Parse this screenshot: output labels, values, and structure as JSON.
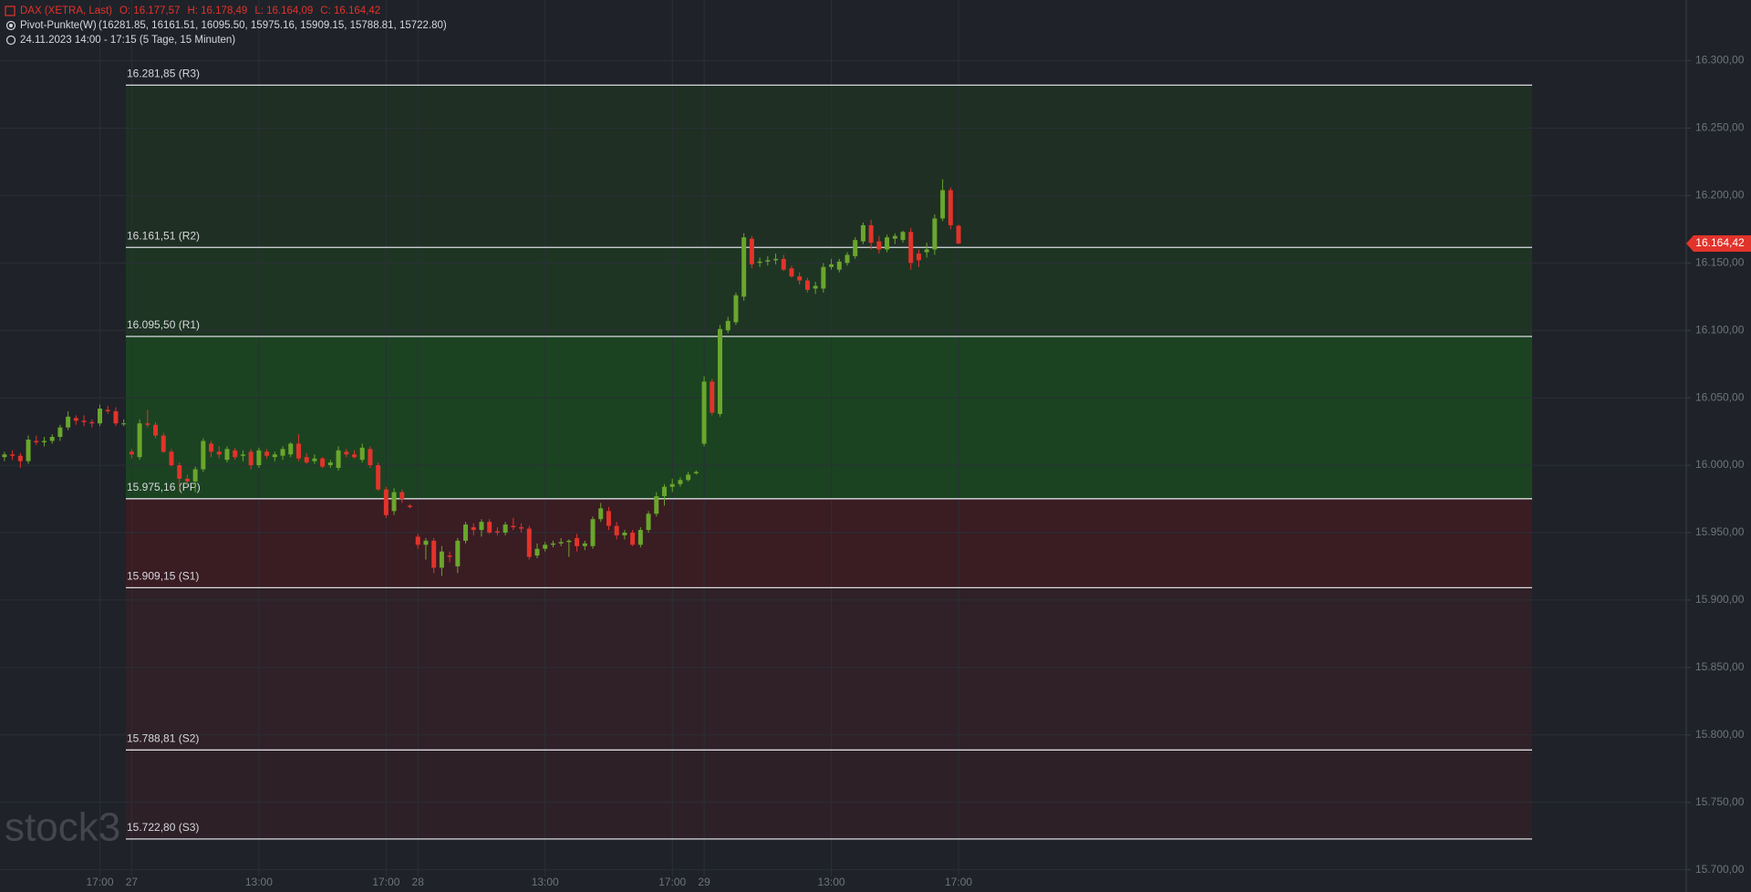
{
  "chart_data": {
    "type": "candlestick",
    "title": "DAX (XETRA, Last)",
    "ohlc_labels": [
      "O: 16.177,57",
      "H: 16.178,49",
      "L: 16.164,09",
      "C: 16.164,42"
    ],
    "indicator": "Pivot-Punkte(W)",
    "indicator_values": "(16281.85,  16161.51,  16095.50,  15975.16,  15909.15,  15788.81,  15722.80)",
    "period": "24.11.2023 14:00 - 17:15   (5 Tage, 15 Minuten)",
    "watermark": "stock3",
    "up_color": "#6aa62c",
    "down_color": "#e2332b",
    "grid": true,
    "ylim": [
      15695,
      16345
    ],
    "yticks": [
      {
        "value": 15700,
        "label": "15.700,00"
      },
      {
        "value": 15750,
        "label": "15.750,00"
      },
      {
        "value": 15800,
        "label": "15.800,00"
      },
      {
        "value": 15850,
        "label": "15.850,00"
      },
      {
        "value": 15900,
        "label": "15.900,00"
      },
      {
        "value": 15950,
        "label": "15.950,00"
      },
      {
        "value": 16000,
        "label": "16.000,00"
      },
      {
        "value": 16050,
        "label": "16.050,00"
      },
      {
        "value": 16100,
        "label": "16.100,00"
      },
      {
        "value": 16150,
        "label": "16.150,00"
      },
      {
        "value": 16200,
        "label": "16.200,00"
      },
      {
        "value": 16250,
        "label": "16.250,00"
      },
      {
        "value": 16300,
        "label": "16.300,00"
      }
    ],
    "pivots": [
      {
        "value": 16281.85,
        "label": "16.281,85 (R3)"
      },
      {
        "value": 16161.51,
        "label": "16.161,51 (R2)"
      },
      {
        "value": 16095.5,
        "label": "16.095,50 (R1)"
      },
      {
        "value": 15975.16,
        "label": "15.975,16 (PP)"
      },
      {
        "value": 15909.15,
        "label": "15.909,15 (S1)"
      },
      {
        "value": 15788.81,
        "label": "15.788,81 (S2)"
      },
      {
        "value": 15722.8,
        "label": "15.722,80 (S3)"
      }
    ],
    "zone_colors": [
      "#1f2f24",
      "#1e3524",
      "#1b4322",
      "#3a1c23",
      "#2f2127",
      "#2d2127"
    ],
    "last_price": {
      "value": 16164.42,
      "label": "16.164,42"
    },
    "categories": [
      null,
      null,
      null,
      null,
      null,
      null,
      null,
      null,
      null,
      null,
      null,
      null,
      "17:00",
      null,
      null,
      null,
      "27",
      null,
      null,
      null,
      null,
      null,
      null,
      null,
      null,
      null,
      null,
      null,
      null,
      null,
      null,
      null,
      "13:00",
      null,
      null,
      null,
      null,
      null,
      null,
      null,
      null,
      null,
      null,
      null,
      null,
      null,
      null,
      null,
      "17:00",
      null,
      null,
      null,
      "28",
      null,
      null,
      null,
      null,
      null,
      null,
      null,
      null,
      null,
      null,
      null,
      null,
      null,
      null,
      null,
      "13:00",
      null,
      null,
      null,
      null,
      null,
      null,
      null,
      null,
      null,
      null,
      null,
      null,
      null,
      null,
      null,
      "17:00",
      null,
      null,
      null,
      "29",
      null,
      null,
      null,
      null,
      null,
      null,
      null,
      null,
      null,
      null,
      null,
      null,
      null,
      null,
      null,
      "13:00",
      null,
      null,
      null,
      null,
      null,
      null,
      null,
      null,
      null,
      null,
      null,
      null,
      null,
      null,
      null,
      "17:00"
    ],
    "open": [
      16006,
      16008,
      16007,
      16003,
      16018,
      16017,
      16018,
      16021,
      16028,
      16035,
      16033,
      16032,
      16031,
      16041,
      16040,
      16031,
      16010,
      16006,
      16031,
      16030,
      16022,
      16010,
      16000,
      15990,
      15988,
      15997,
      16016,
      16010,
      16004,
      16011,
      16007,
      16010,
      16000,
      16010,
      16006,
      16007,
      16008,
      16016,
      16006,
      16003,
      16005,
      16000,
      15998,
      16010,
      16008,
      16004,
      16012,
      16000,
      15982,
      15966,
      15980,
      15970,
      15947,
      15941,
      15944,
      15924,
      15933,
      15925,
      15944,
      15954,
      15952,
      15958,
      15951,
      15950,
      15955,
      15954,
      15953,
      15933,
      15938,
      15941,
      15942,
      15943,
      15946,
      15940,
      15940,
      15960,
      15966,
      15955,
      15948,
      15950,
      15941,
      15952,
      15964,
      15977,
      15984,
      15986,
      15989,
      15994,
      16016,
      16062,
      16038,
      16100,
      16106,
      16125,
      16168,
      16150,
      16151,
      16152,
      16153,
      16146,
      16140,
      16137,
      16131,
      16131,
      16147,
      16145,
      16150,
      16155,
      16166,
      16178,
      16166,
      16160,
      16168,
      16167,
      16173,
      16157,
      16158,
      16160,
      16183,
      16204,
      16177.57
    ],
    "high": [
      16010,
      16011,
      16009,
      16022,
      16022,
      16021,
      16023,
      16030,
      16040,
      16037,
      16037,
      16034,
      16045,
      16044,
      16043,
      16034,
      16012,
      16034,
      16041,
      16032,
      16024,
      16012,
      16002,
      15993,
      15999,
      16020,
      16018,
      16014,
      16014,
      16013,
      16011,
      16012,
      16013,
      16012,
      16010,
      16014,
      16017,
      16023,
      16009,
      16008,
      16006,
      16004,
      16014,
      16012,
      16011,
      16016,
      16014,
      16002,
      15984,
      15983,
      15982,
      15971,
      15949,
      15946,
      15946,
      15940,
      15936,
      15946,
      15958,
      15957,
      15960,
      15960,
      15954,
      15958,
      15961,
      15957,
      15955,
      15942,
      15943,
      15944,
      15946,
      15945,
      15949,
      15944,
      15962,
      15972,
      15969,
      15958,
      15952,
      15952,
      15954,
      15966,
      15980,
      15986,
      15990,
      15991,
      15995,
      15996,
      16066,
      16064,
      16104,
      16110,
      16128,
      16172,
      16170,
      16154,
      16155,
      16157,
      16156,
      16148,
      16143,
      16139,
      16136,
      16150,
      16153,
      16153,
      16158,
      16169,
      16180,
      16182,
      16170,
      16171,
      16172,
      16174,
      16176,
      16160,
      16165,
      16186,
      16212,
      16206,
      16178.49
    ],
    "low": [
      16003,
      16004,
      15998,
      16001,
      16015,
      16014,
      16016,
      16018,
      16026,
      16030,
      16029,
      16028,
      16029,
      16038,
      16029,
      16029,
      16005,
      16004,
      16028,
      16020,
      16009,
      15999,
      15981,
      15985,
      15980,
      15995,
      16006,
      16005,
      16002,
      16004,
      16003,
      15997,
      15998,
      16005,
      16003,
      16004,
      16006,
      16003,
      16001,
      16001,
      15998,
      15998,
      15996,
      16006,
      16005,
      16002,
      15998,
      15981,
      15961,
      15963,
      15972,
      15968,
      15938,
      15930,
      15920,
      15918,
      15928,
      15920,
      15942,
      15948,
      15947,
      15949,
      15948,
      15948,
      15952,
      15950,
      15930,
      15931,
      15936,
      15939,
      15940,
      15932,
      15936,
      15937,
      15938,
      15958,
      15952,
      15945,
      15945,
      15940,
      15939,
      15950,
      15962,
      15970,
      15980,
      15984,
      15988,
      15993,
      16014,
      16037,
      16036,
      16098,
      16104,
      16122,
      16146,
      16147,
      16148,
      16149,
      16144,
      16139,
      16134,
      16128,
      16127,
      16128,
      16145,
      16143,
      16148,
      16153,
      16164,
      16160,
      16157,
      16158,
      16164,
      16165,
      16145,
      16147,
      16154,
      16156,
      16181,
      16175,
      16164.09
    ],
    "close": [
      16008,
      16007,
      16003,
      16019,
      16017,
      16018,
      16021,
      16028,
      16036,
      16033,
      16032,
      16031,
      16042,
      16040,
      16031,
      16031,
      16008,
      16031,
      16030,
      16022,
      16010,
      16000,
      15990,
      15988,
      15997,
      16018,
      16010,
      16008,
      16012,
      16006,
      16008,
      16000,
      16011,
      16007,
      16008,
      16012,
      16016,
      16005,
      16002,
      16005,
      15999,
      16002,
      16011,
      16008,
      16006,
      16013,
      16000,
      15982,
      15963,
      15980,
      15975,
      15969,
      15941,
      15944,
      15924,
      15936,
      15932,
      15944,
      15956,
      15952,
      15958,
      15950,
      15950,
      15956,
      15954,
      15953,
      15932,
      15938,
      15941,
      15942,
      15943,
      15944,
      15940,
      15942,
      15960,
      15968,
      15955,
      15948,
      15950,
      15941,
      15952,
      15964,
      15977,
      15984,
      15986,
      15989,
      15993,
      15995,
      16062,
      16039,
      16101,
      16107,
      16126,
      16169,
      16149,
      16151,
      16152,
      16153,
      16145,
      16140,
      16137,
      16130,
      16133,
      16147,
      16149,
      16151,
      16156,
      16167,
      16178,
      16165,
      16160,
      16169,
      16170,
      16173,
      16150,
      16152,
      16160,
      16183,
      16204,
      16178,
      16164.42
    ]
  }
}
